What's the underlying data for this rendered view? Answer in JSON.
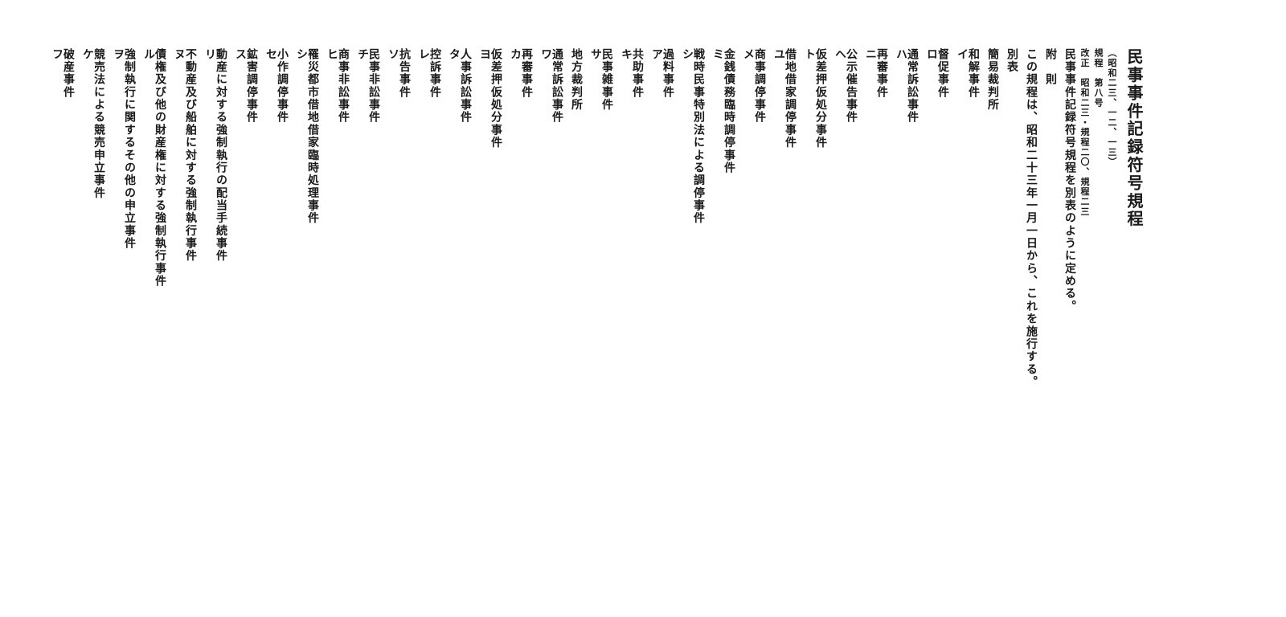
{
  "title": "民事事件記録符号規程",
  "title_note1": "（昭和二三、一二、一三）",
  "title_note2": "規程　第八号",
  "amend_note": "改正　昭和二三・規程二〇、規程二三",
  "preface_line1": "民事事件記録符号規程を別表のように定める。",
  "preface_heading": "附　則",
  "preface_line2": "この規程は、昭和二十三年一月一日から、これを施行する。",
  "table_heading": "別表",
  "court1": "簡易裁判所",
  "court2": "地方裁判所",
  "items": [
    {
      "label": "和解事件",
      "code": "イ"
    },
    {
      "label": "督促事件",
      "code": "ロ"
    },
    {
      "label": "通常訴訟事件",
      "code": "ハ"
    },
    {
      "label": "再審事件",
      "code": "ニ"
    },
    {
      "label": "公示催告事件",
      "code": "ヘ"
    },
    {
      "label": "仮差押仮処分事件",
      "code": "ト"
    },
    {
      "label": "借地借家調停事件",
      "code": "ユ"
    },
    {
      "label": "商事調停事件",
      "code": "メ"
    },
    {
      "label": "金銭債務臨時調停事件",
      "code": "ミ"
    },
    {
      "label": "戦時民事特別法による調停事件",
      "code": "シ"
    },
    {
      "label": "過料事件",
      "code": "ア"
    },
    {
      "label": "共助事件",
      "code": "キ"
    },
    {
      "label": "民事雑事件",
      "code": "サ"
    },
    {
      "label": "通常訴訟事件",
      "code": "ワ"
    },
    {
      "label": "再審事件",
      "code": "カ"
    },
    {
      "label": "仮差押仮処分事件",
      "code": "ヨ"
    },
    {
      "label": "人事訴訟事件",
      "code": "タ"
    },
    {
      "label": "控訴事件",
      "code": "レ"
    },
    {
      "label": "抗告事件",
      "code": "ソ"
    },
    {
      "label": "民事非訟事件",
      "code": "チ"
    },
    {
      "label": "商事非訟事件",
      "code": "ヒ"
    },
    {
      "label": "罹災都市借地借家臨時処理事件",
      "code": "シ"
    },
    {
      "label": "小作調停事件",
      "code": "セ"
    },
    {
      "label": "鉱害調停事件",
      "code": "ス"
    },
    {
      "label": "動産に対する強制執行の配当手続事件",
      "code": "リ"
    },
    {
      "label": "不動産及び船舶に対する強制執行事件",
      "code": "ヌ"
    },
    {
      "label": "債権及び他の財産権に対する強制執行事件",
      "code": "ル"
    },
    {
      "label": "強制執行に関するその他の申立事件",
      "code": "ヲ"
    },
    {
      "label": "競売法による競売申立事件",
      "code": "ケ"
    },
    {
      "label": "破産事件",
      "code": "フ"
    }
  ],
  "court2_after_index": 12,
  "colors": {
    "text": "#1a1a1a",
    "background": "#ffffff"
  },
  "typography": {
    "title_fontsize": 20,
    "body_fontsize": 14,
    "note_fontsize": 11,
    "weight": 900
  }
}
